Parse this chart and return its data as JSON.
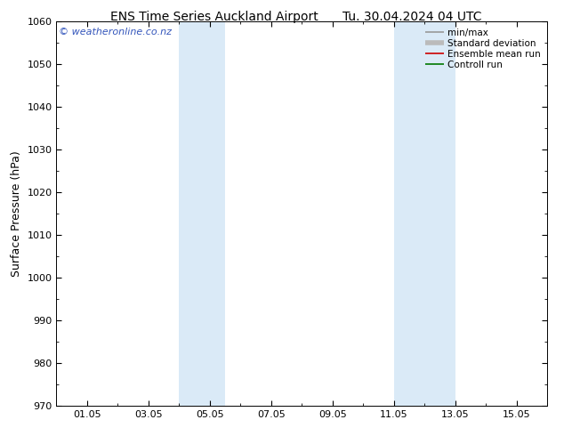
{
  "title1": "ENS Time Series Auckland Airport",
  "title2": "Tu. 30.04.2024 04 UTC",
  "ylabel": "Surface Pressure (hPa)",
  "ylim": [
    970,
    1060
  ],
  "yticks": [
    970,
    980,
    990,
    1000,
    1010,
    1020,
    1030,
    1040,
    1050,
    1060
  ],
  "xtick_labels": [
    "01.05",
    "03.05",
    "05.05",
    "07.05",
    "09.05",
    "11.05",
    "13.05",
    "15.05"
  ],
  "xtick_positions": [
    1,
    3,
    5,
    7,
    9,
    11,
    13,
    15
  ],
  "xlim": [
    0,
    16
  ],
  "shaded_bands": [
    {
      "x_start": 4.0,
      "x_end": 5.5,
      "color": "#daeaf7"
    },
    {
      "x_start": 11.0,
      "x_end": 13.0,
      "color": "#daeaf7"
    }
  ],
  "watermark": "© weatheronline.co.nz",
  "watermark_color": "#3355bb",
  "legend_entries": [
    {
      "label": "min/max",
      "color": "#999999",
      "lw": 1.2
    },
    {
      "label": "Standard deviation",
      "color": "#bbbbbb",
      "lw": 4
    },
    {
      "label": "Ensemble mean run",
      "color": "#cc0000",
      "lw": 1.2
    },
    {
      "label": "Controll run",
      "color": "#007700",
      "lw": 1.2
    }
  ],
  "bg_color": "#ffffff",
  "title_fontsize": 10,
  "tick_fontsize": 8,
  "ylabel_fontsize": 9,
  "watermark_fontsize": 8,
  "legend_fontsize": 7.5
}
